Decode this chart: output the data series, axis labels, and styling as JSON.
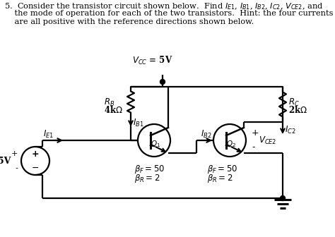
{
  "bg_color": "#ffffff",
  "line_color": "#000000",
  "header1": "5.  Consider the transistor circuit shown below.  Find $I_{E1}$, $I_{B1}$, $I_{B2}$, $I_{C2}$, $V_{CE2}$, and",
  "header2": "    the mode of operation for each of the two transistors.  Hint: the four currents",
  "header3": "    are all positive with the reference directions shown below.",
  "vcc_text": "$V_{CC}$ = 5V",
  "rb_line1": "$R_B$",
  "rb_line2": "4k$\\Omega$",
  "rc_line1": "$R_C$",
  "rc_line2": "2k$\\Omega$",
  "ib1_text": "$I_{B1}$",
  "ic2_text": "$I_{C2}$",
  "ib2_text": "$I_{B2}$",
  "ie1_text": "$I_{E1}$",
  "q1_text": "$Q_1$",
  "q2_text": "$Q_2$",
  "vce2_plus": "+",
  "vce2_minus": "-",
  "vce2_text": "$V_{CE2}$",
  "bf1_text": "$\\beta_F = 50$",
  "br1_text": "$\\beta_R = 2$",
  "bf2_text": "$\\beta_F = 50$",
  "br2_text": "$\\beta_R = 2$",
  "v5_text": "5V",
  "v5_plus": "+",
  "v5_minus": "-",
  "fontsize_header": 8.2,
  "fontsize_label": 8.5,
  "fontsize_small": 7.5
}
